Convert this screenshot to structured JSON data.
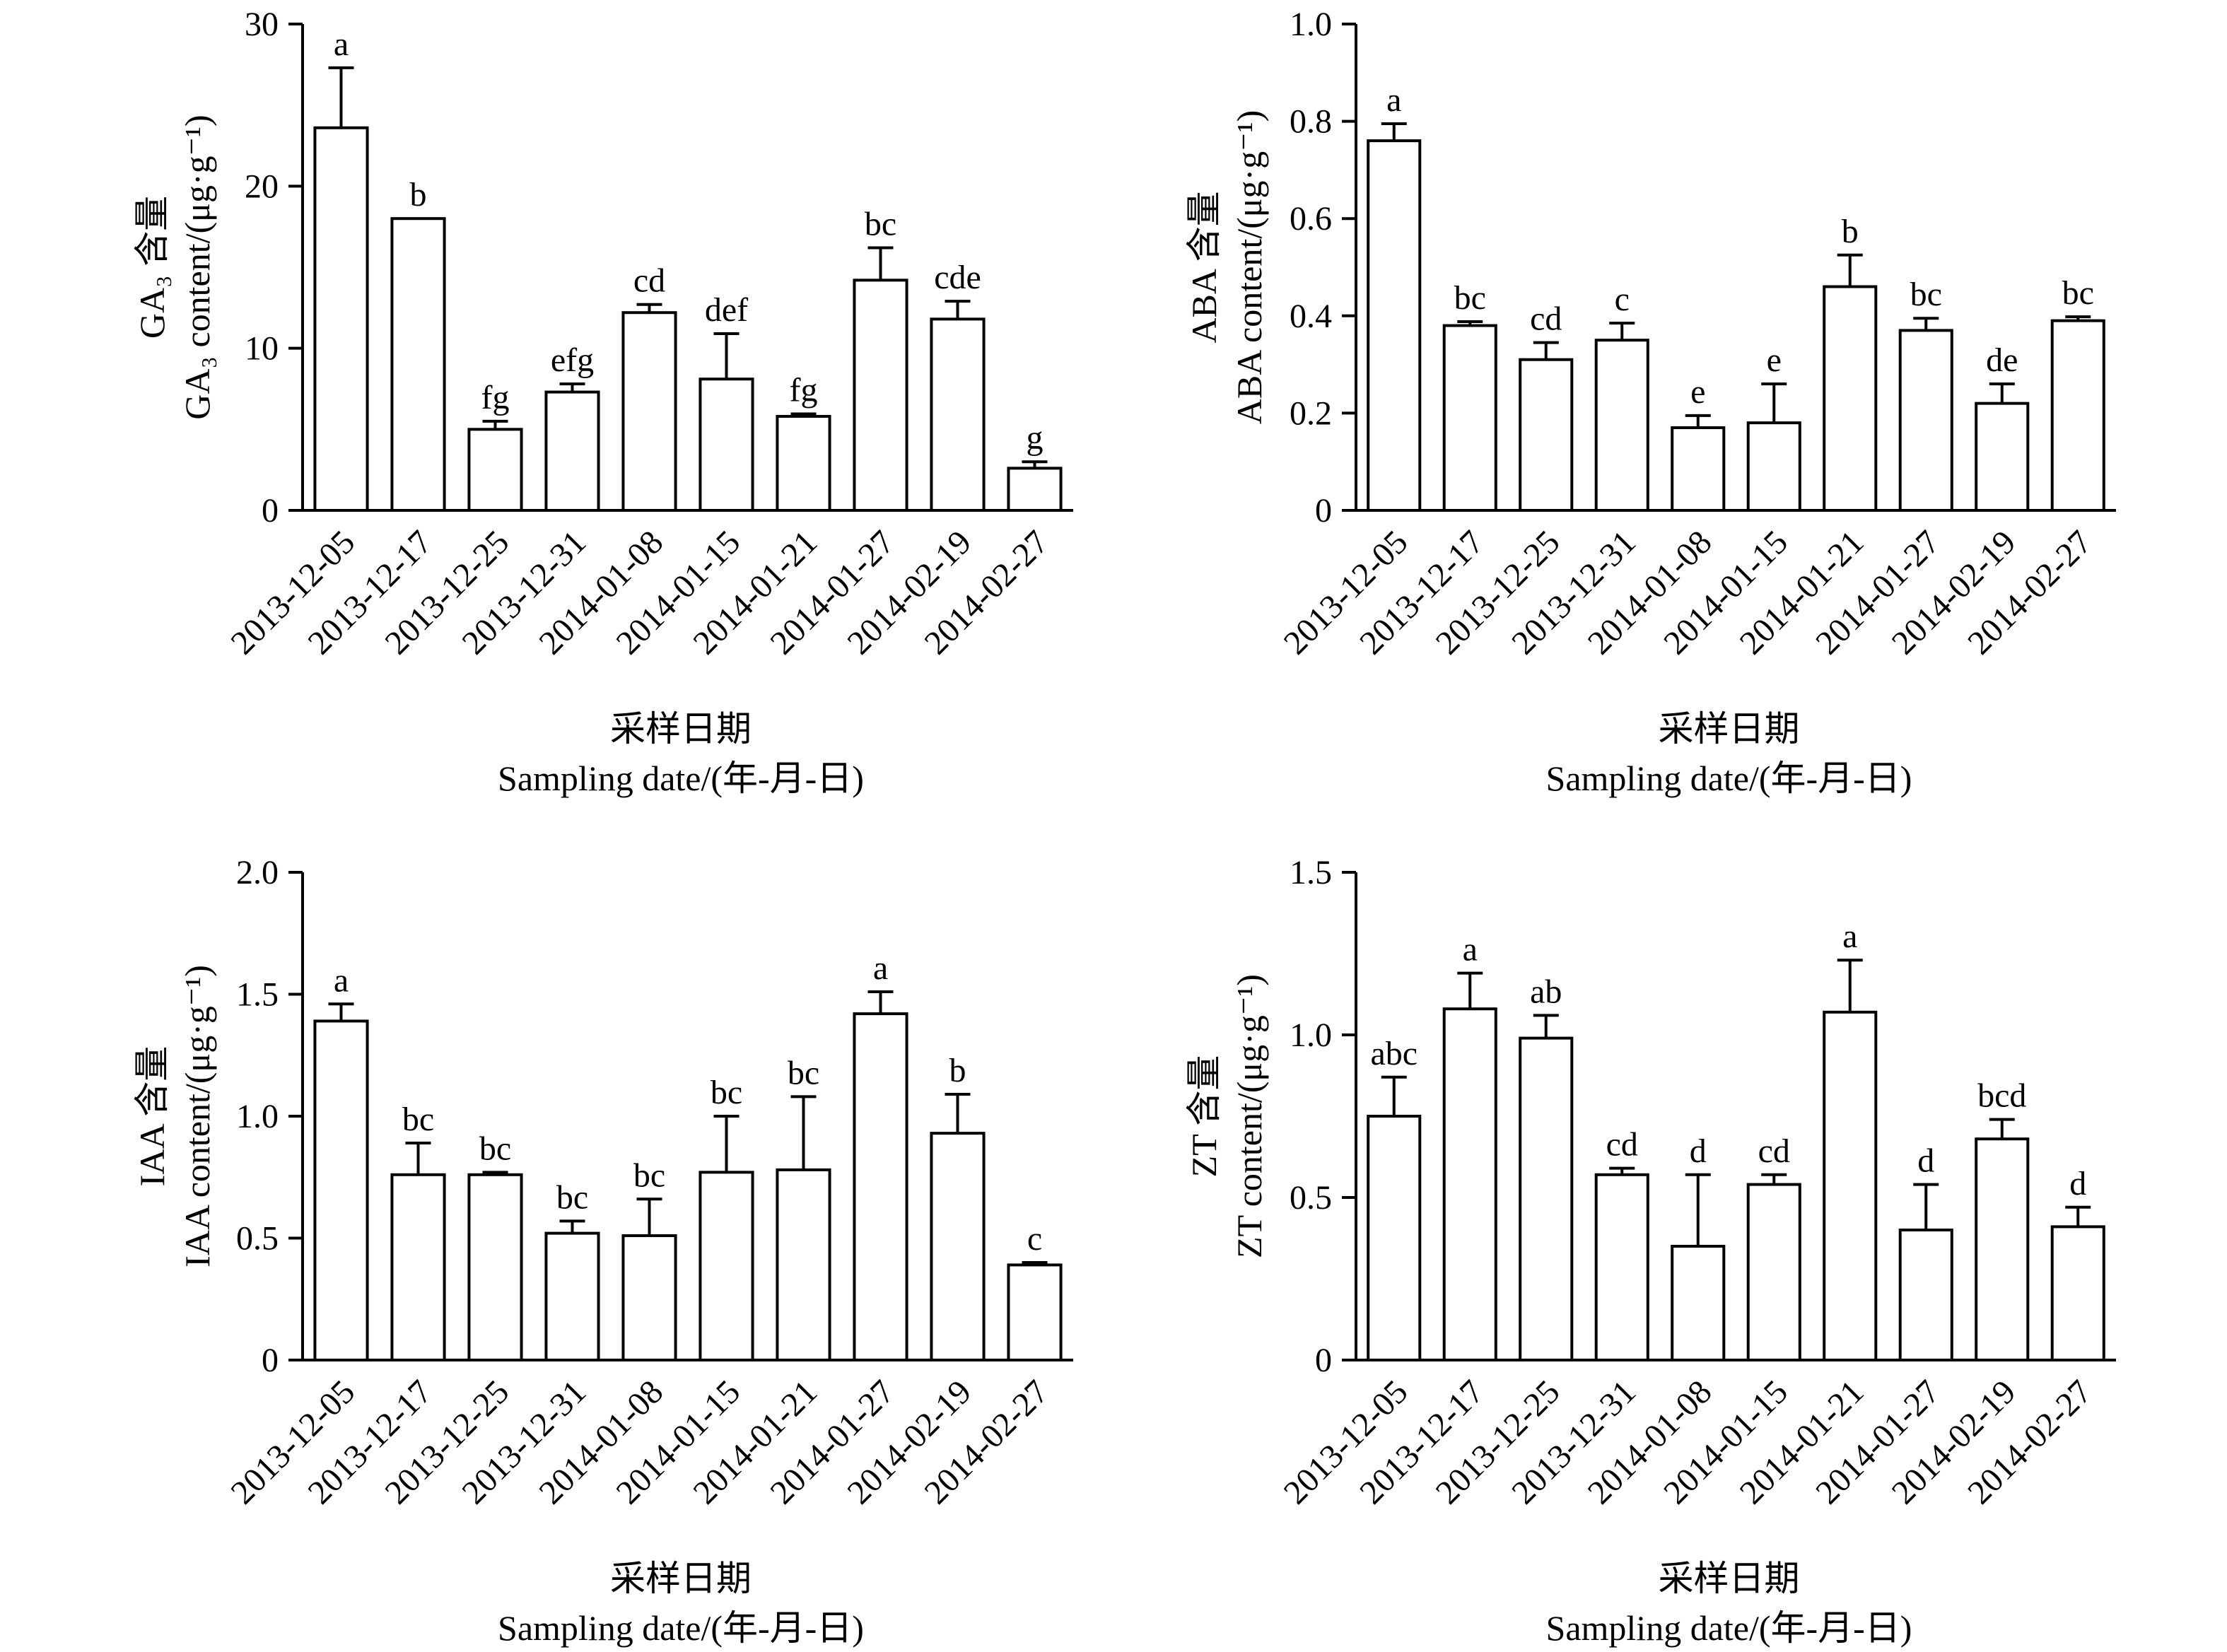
{
  "chart_data": [
    {
      "type": "bar",
      "categories": [
        "2013-12-05",
        "2013-12-17",
        "2013-12-25",
        "2013-12-31",
        "2014-01-08",
        "2014-01-15",
        "2014-01-21",
        "2014-01-27",
        "2014-02-19",
        "2014-02-27"
      ],
      "values": [
        23.6,
        18.0,
        5.0,
        7.3,
        12.2,
        8.1,
        5.8,
        14.2,
        11.8,
        2.6
      ],
      "errors": [
        3.7,
        0,
        0.5,
        0.5,
        0.5,
        2.8,
        0.15,
        2.0,
        1.1,
        0.4
      ],
      "letters": [
        "a",
        "b",
        "fg",
        "efg",
        "cd",
        "def",
        "fg",
        "bc",
        "cde",
        "g"
      ],
      "ylim": [
        0,
        30
      ],
      "yticks": [
        "0",
        "10",
        "20",
        "30"
      ],
      "ylabel_cn": "GA₃ 含量",
      "ylabel_en": "GA₃ content/(μg·g⁻¹)",
      "xlabel_cn": "采样日期",
      "xlabel_en": "Sampling date/(年-月-日)"
    },
    {
      "type": "bar",
      "categories": [
        "2013-12-05",
        "2013-12-17",
        "2013-12-25",
        "2013-12-31",
        "2014-01-08",
        "2014-01-15",
        "2014-01-21",
        "2014-01-27",
        "2014-02-19",
        "2014-02-27"
      ],
      "values": [
        0.76,
        0.38,
        0.31,
        0.35,
        0.17,
        0.18,
        0.46,
        0.37,
        0.22,
        0.39
      ],
      "errors": [
        0.035,
        0.008,
        0.035,
        0.035,
        0.025,
        0.08,
        0.065,
        0.025,
        0.04,
        0.008
      ],
      "letters": [
        "a",
        "bc",
        "cd",
        "c",
        "e",
        "e",
        "b",
        "bc",
        "de",
        "bc"
      ],
      "ylim": [
        0,
        1.0
      ],
      "yticks": [
        "0",
        "0.2",
        "0.4",
        "0.6",
        "0.8",
        "1.0"
      ],
      "ylabel_cn": "ABA 含量",
      "ylabel_en": "ABA content/(μg·g⁻¹)",
      "xlabel_cn": "采样日期",
      "xlabel_en": "Sampling date/(年-月-日)"
    },
    {
      "type": "bar",
      "categories": [
        "2013-12-05",
        "2013-12-17",
        "2013-12-25",
        "2013-12-31",
        "2014-01-08",
        "2014-01-15",
        "2014-01-21",
        "2014-01-27",
        "2014-02-19",
        "2014-02-27"
      ],
      "values": [
        1.39,
        0.76,
        0.76,
        0.52,
        0.51,
        0.77,
        0.78,
        1.42,
        0.93,
        0.39
      ],
      "errors": [
        0.07,
        0.13,
        0.01,
        0.05,
        0.15,
        0.23,
        0.3,
        0.09,
        0.16,
        0.01
      ],
      "letters": [
        "a",
        "bc",
        "bc",
        "bc",
        "bc",
        "bc",
        "bc",
        "a",
        "b",
        "c"
      ],
      "ylim": [
        0,
        2.0
      ],
      "yticks": [
        "0",
        "0.5",
        "1.0",
        "1.5",
        "2.0"
      ],
      "ylabel_cn": "IAA 含量",
      "ylabel_en": "IAA content/(μg·g⁻¹)",
      "xlabel_cn": "采样日期",
      "xlabel_en": "Sampling date/(年-月-日)"
    },
    {
      "type": "bar",
      "categories": [
        "2013-12-05",
        "2013-12-17",
        "2013-12-25",
        "2013-12-31",
        "2014-01-08",
        "2014-01-15",
        "2014-01-21",
        "2014-01-27",
        "2014-02-19",
        "2014-02-27"
      ],
      "values": [
        0.75,
        1.08,
        0.99,
        0.57,
        0.35,
        0.54,
        1.07,
        0.4,
        0.68,
        0.41
      ],
      "errors": [
        0.12,
        0.11,
        0.07,
        0.02,
        0.22,
        0.03,
        0.16,
        0.14,
        0.06,
        0.06
      ],
      "letters": [
        "abc",
        "a",
        "ab",
        "cd",
        "d",
        "cd",
        "a",
        "d",
        "bcd",
        "d"
      ],
      "ylim": [
        0,
        1.5
      ],
      "yticks": [
        "0",
        "0.5",
        "1.0",
        "1.5"
      ],
      "ylabel_cn": "ZT 含量",
      "ylabel_en": "ZT content/(μg·g⁻¹)",
      "xlabel_cn": "采样日期",
      "xlabel_en": "Sampling date/(年-月-日)"
    }
  ]
}
